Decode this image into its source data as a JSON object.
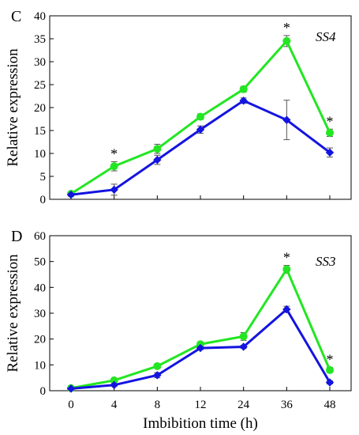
{
  "chart_data": [
    {
      "type": "line",
      "panel_label": "C",
      "gene_label": "SS4",
      "ylabel": "Relative expression",
      "xlabel": "",
      "x": [
        0,
        4,
        8,
        12,
        24,
        36,
        48
      ],
      "x_tick_labels": [],
      "ylim": [
        0,
        40
      ],
      "y_ticks": [
        0,
        5,
        10,
        15,
        20,
        25,
        30,
        35,
        40
      ],
      "grid": false,
      "series": [
        {
          "color": "#22e622",
          "marker": "circle",
          "values": [
            1.2,
            7.2,
            11.0,
            18.0,
            24.0,
            34.5,
            14.5
          ],
          "errors": [
            0.3,
            1.0,
            1.0,
            0.6,
            0.6,
            1.2,
            0.8
          ]
        },
        {
          "color": "#1414e0",
          "marker": "diamond",
          "values": [
            1.0,
            2.1,
            8.6,
            15.2,
            21.5,
            17.3,
            10.2
          ],
          "errors": [
            0.3,
            1.2,
            1.0,
            0.8,
            0.6,
            4.3,
            1.0
          ]
        }
      ],
      "significance": [
        {
          "x": 4,
          "text": "*"
        },
        {
          "x": 36,
          "text": "*"
        },
        {
          "x": 48,
          "text": "*"
        }
      ]
    },
    {
      "type": "line",
      "panel_label": "D",
      "gene_label": "SS3",
      "ylabel": "Relative expression",
      "xlabel": "Imbibition  time (h)",
      "x": [
        0,
        4,
        8,
        12,
        24,
        36,
        48
      ],
      "x_tick_labels": [
        "0",
        "4",
        "8",
        "12",
        "24",
        "36",
        "48"
      ],
      "ylim": [
        0,
        60
      ],
      "y_ticks": [
        0,
        10,
        20,
        30,
        40,
        50,
        60
      ],
      "grid": false,
      "series": [
        {
          "color": "#22e622",
          "marker": "circle",
          "values": [
            1.0,
            4.0,
            9.5,
            18.0,
            21.0,
            47.0,
            8.0
          ],
          "errors": [
            0.3,
            0.5,
            0.8,
            0.8,
            1.5,
            1.5,
            1.0
          ]
        },
        {
          "color": "#1414e0",
          "marker": "diamond",
          "values": [
            0.8,
            2.2,
            6.0,
            16.5,
            17.0,
            31.5,
            3.2
          ],
          "errors": [
            0.3,
            0.5,
            1.0,
            0.6,
            0.6,
            1.2,
            0.6
          ]
        }
      ],
      "significance": [
        {
          "x": 36,
          "text": "*"
        },
        {
          "x": 48,
          "text": "*"
        }
      ]
    }
  ]
}
